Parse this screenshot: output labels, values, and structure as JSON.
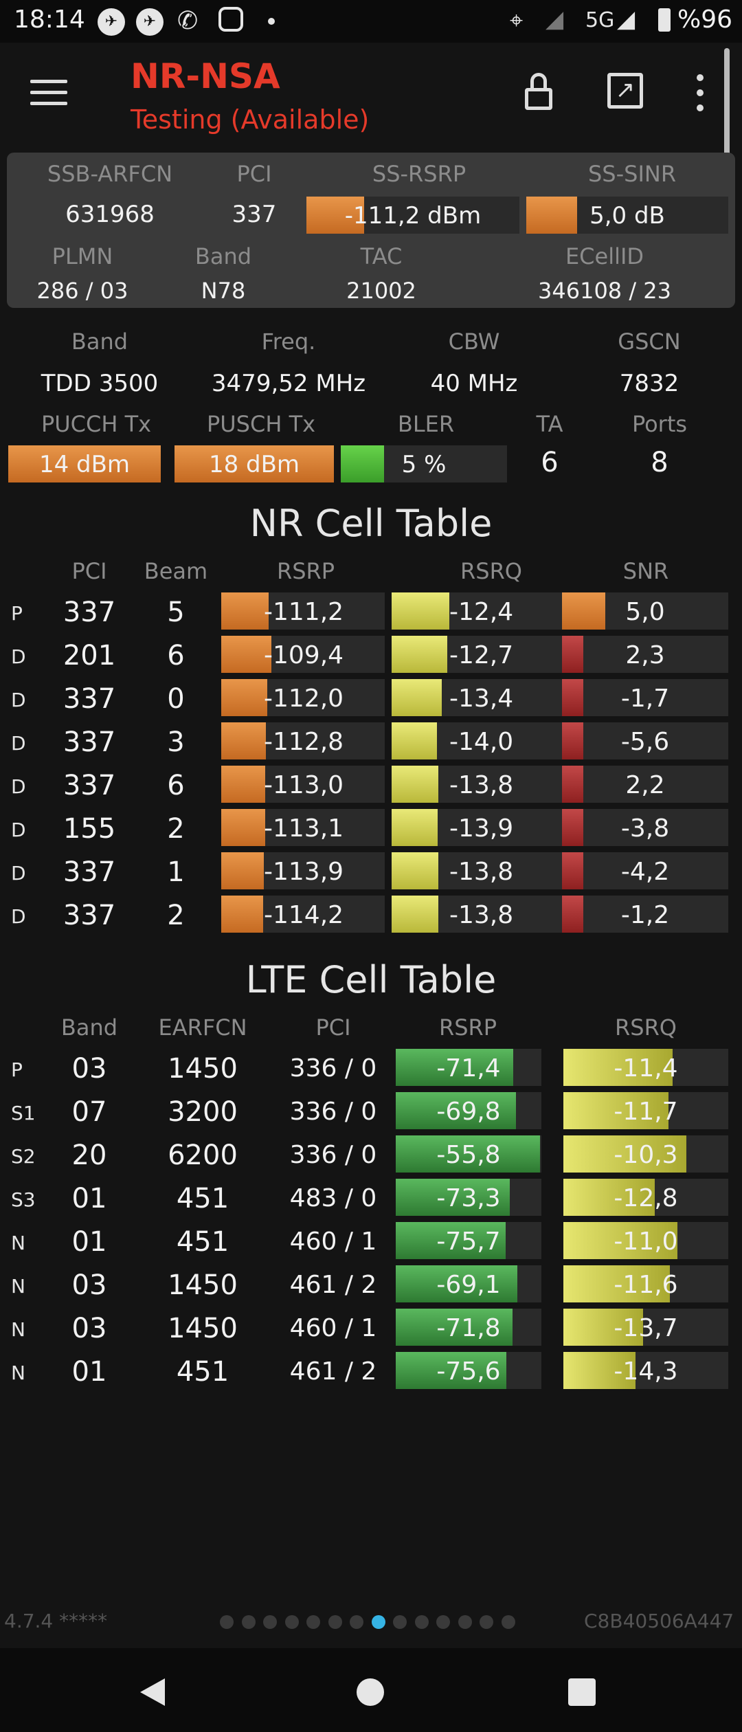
{
  "status_bar": {
    "time": "18:14",
    "network": "5G",
    "battery": "%96"
  },
  "app": {
    "title": "NR-NSA",
    "subtitle": "Testing (Available)"
  },
  "info": {
    "row1_labels": [
      "SSB-ARFCN",
      "PCI",
      "SS-RSRP",
      "SS-SINR"
    ],
    "ssb_arfcn": "631968",
    "pci": "337",
    "ss_rsrp": "-111,2 dBm",
    "ss_sinr": "5,0 dB",
    "row2_labels": [
      "PLMN",
      "Band",
      "TAC",
      "ECellID"
    ],
    "plmn": "286 / 03",
    "band": "N78",
    "tac": "21002",
    "ecellid": "346108 / 23"
  },
  "details": {
    "row1_labels": [
      "Band",
      "Freq.",
      "CBW",
      "GSCN"
    ],
    "band": "TDD 3500",
    "freq": "3479,52 MHz",
    "cbw": "40 MHz",
    "gscn": "7832",
    "row2_labels": [
      "PUCCH Tx",
      "PUSCH Tx",
      "BLER",
      "TA",
      "Ports"
    ],
    "pucch": "14 dBm",
    "pusch": "18 dBm",
    "bler": "5 %",
    "ta": "6",
    "ports": "8"
  },
  "nr_table": {
    "title": "NR Cell Table",
    "headers": [
      "PCI",
      "Beam",
      "RSRP",
      "RSRQ",
      "SNR"
    ],
    "rows": [
      {
        "type": "P",
        "pci": "337",
        "beam": "5",
        "rsrp": "-111,2",
        "rsrq": "-12,4",
        "snr": "5,0"
      },
      {
        "type": "D",
        "pci": "201",
        "beam": "6",
        "rsrp": "-109,4",
        "rsrq": "-12,7",
        "snr": "2,3"
      },
      {
        "type": "D",
        "pci": "337",
        "beam": "0",
        "rsrp": "-112,0",
        "rsrq": "-13,4",
        "snr": "-1,7"
      },
      {
        "type": "D",
        "pci": "337",
        "beam": "3",
        "rsrp": "-112,8",
        "rsrq": "-14,0",
        "snr": "-5,6"
      },
      {
        "type": "D",
        "pci": "337",
        "beam": "6",
        "rsrp": "-113,0",
        "rsrq": "-13,8",
        "snr": "2,2"
      },
      {
        "type": "D",
        "pci": "155",
        "beam": "2",
        "rsrp": "-113,1",
        "rsrq": "-13,9",
        "snr": "-3,8"
      },
      {
        "type": "D",
        "pci": "337",
        "beam": "1",
        "rsrp": "-113,9",
        "rsrq": "-13,8",
        "snr": "-4,2"
      },
      {
        "type": "D",
        "pci": "337",
        "beam": "2",
        "rsrp": "-114,2",
        "rsrq": "-13,8",
        "snr": "-1,2"
      }
    ]
  },
  "lte_table": {
    "title": "LTE Cell Table",
    "headers": [
      "Band",
      "EARFCN",
      "PCI",
      "RSRP",
      "RSRQ"
    ],
    "rows": [
      {
        "type": "P",
        "band": "03",
        "earfcn": "1450",
        "pci": "336 / 0",
        "rsrp": "-71,4",
        "rsrq": "-11,4"
      },
      {
        "type": "S1",
        "band": "07",
        "earfcn": "3200",
        "pci": "336 / 0",
        "rsrp": "-69,8",
        "rsrq": "-11,7"
      },
      {
        "type": "S2",
        "band": "20",
        "earfcn": "6200",
        "pci": "336 / 0",
        "rsrp": "-55,8",
        "rsrq": "-10,3"
      },
      {
        "type": "S3",
        "band": "01",
        "earfcn": "451",
        "pci": "483 / 0",
        "rsrp": "-73,3",
        "rsrq": "-12,8"
      },
      {
        "type": "N",
        "band": "01",
        "earfcn": "451",
        "pci": "460 / 1",
        "rsrp": "-75,7",
        "rsrq": "-11,0"
      },
      {
        "type": "N",
        "band": "03",
        "earfcn": "1450",
        "pci": "461 / 2",
        "rsrp": "-69,1",
        "rsrq": "-11,6"
      },
      {
        "type": "N",
        "band": "03",
        "earfcn": "1450",
        "pci": "460 / 1",
        "rsrp": "-71,8",
        "rsrq": "-13,7"
      },
      {
        "type": "N",
        "band": "01",
        "earfcn": "451",
        "pci": "461 / 2",
        "rsrp": "-75,6",
        "rsrq": "-14,3"
      }
    ]
  },
  "footer": {
    "version": "4.7.4 *****",
    "device_id": "C8B40506A447",
    "page_count": 14,
    "active_page": 7
  },
  "colors": {
    "accent_title": "#e53a2a",
    "active_dot": "#36b4e5"
  }
}
